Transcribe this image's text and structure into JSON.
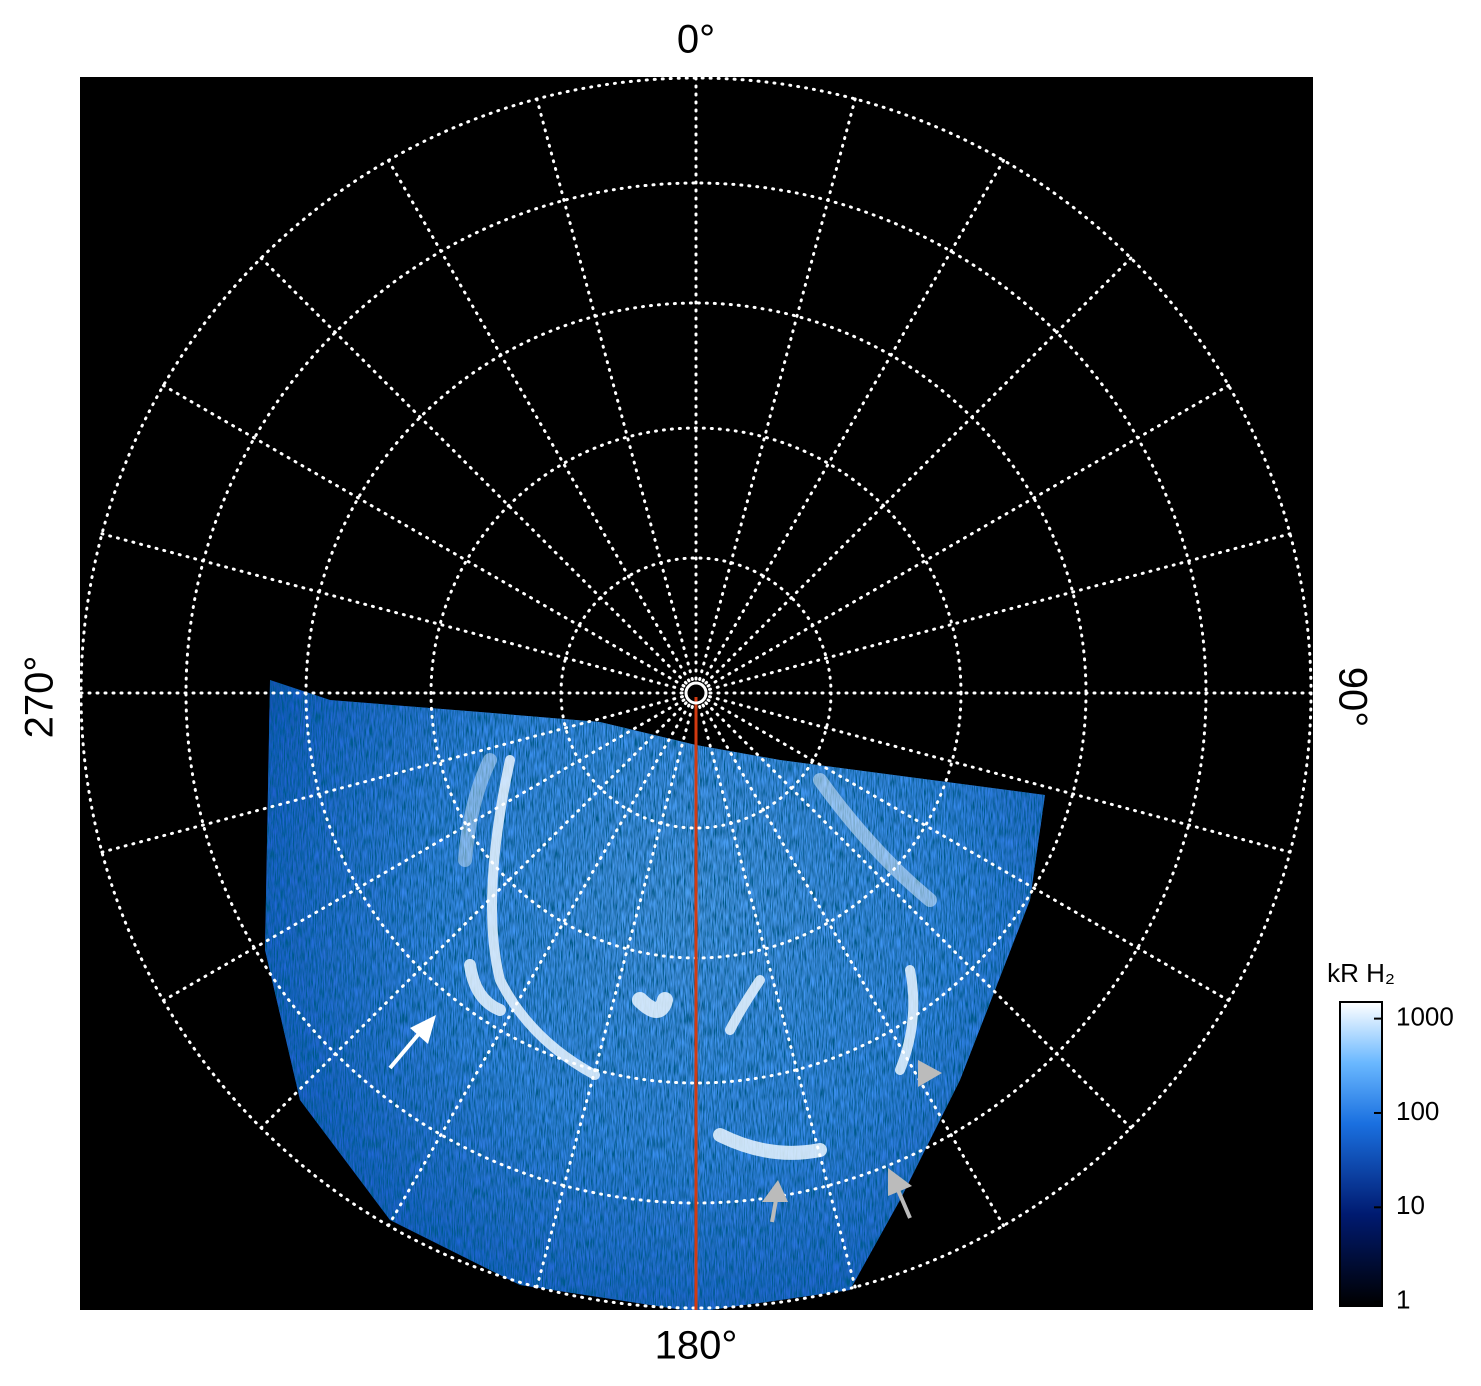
{
  "labels": {
    "top": "0°",
    "right": "90°",
    "bottom": "180°",
    "left": "270°"
  },
  "colorbar": {
    "title": "kR H₂",
    "scale": "log",
    "lim": [
      0.9,
      1500
    ],
    "ticks": [
      1,
      10,
      100,
      1000
    ]
  }
}
